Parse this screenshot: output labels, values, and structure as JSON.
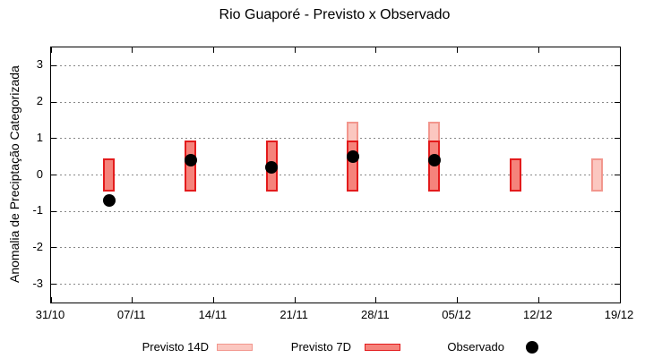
{
  "title": "Rio Guaporé - Previsto x Observado",
  "chart_data": {
    "type": "bar",
    "subtype": "forecast-range-bars-with-observed-scatter",
    "title": "Rio Guaporé - Previsto x Observado",
    "xlabel": "",
    "ylabel": "Anomalia de Preciptação Categorizada",
    "ylim": [
      -3.5,
      3.5
    ],
    "y_ticks": [
      3,
      2,
      1,
      0,
      -1,
      -2,
      -3
    ],
    "x_tick_labels": [
      "31/10",
      "07/11",
      "14/11",
      "21/11",
      "28/11",
      "05/12",
      "12/12",
      "19/12"
    ],
    "x_tick_days": [
      0,
      7,
      14,
      21,
      28,
      35,
      42,
      49
    ],
    "xlim_days": [
      0,
      49
    ],
    "grid": "horizontal-dotted",
    "legend_position": "below-plot",
    "bar_width_days": 1,
    "series": [
      {
        "name": "Previsto 14D",
        "type": "range-bar",
        "fill": "#fbc7c0",
        "border": "#f2968d",
        "points": [
          {
            "date": "26/11",
            "day": 26,
            "low": -0.45,
            "high": 1.45
          },
          {
            "date": "03/12",
            "day": 33,
            "low": -0.45,
            "high": 1.45
          },
          {
            "date": "17/12",
            "day": 47,
            "low": -0.45,
            "high": 0.45
          }
        ]
      },
      {
        "name": "Previsto 7D",
        "type": "range-bar",
        "fill": "#f5837b",
        "border": "#e31b1c",
        "points": [
          {
            "date": "05/11",
            "day": 5,
            "low": -0.45,
            "high": 0.45
          },
          {
            "date": "12/11",
            "day": 12,
            "low": -0.45,
            "high": 0.95
          },
          {
            "date": "19/11",
            "day": 19,
            "low": -0.45,
            "high": 0.95
          },
          {
            "date": "26/11",
            "day": 26,
            "low": -0.45,
            "high": 0.95
          },
          {
            "date": "03/12",
            "day": 33,
            "low": -0.45,
            "high": 0.95
          },
          {
            "date": "10/12",
            "day": 40,
            "low": -0.45,
            "high": 0.45
          }
        ]
      },
      {
        "name": "Observado",
        "type": "scatter",
        "color": "#000000",
        "points": [
          {
            "date": "05/11",
            "day": 5,
            "value": -0.7
          },
          {
            "date": "12/11",
            "day": 12,
            "value": 0.4
          },
          {
            "date": "19/11",
            "day": 19,
            "value": 0.2
          },
          {
            "date": "26/11",
            "day": 26,
            "value": 0.5
          },
          {
            "date": "03/12",
            "day": 33,
            "value": 0.4
          }
        ]
      }
    ]
  },
  "legend": {
    "items": [
      {
        "label": "Previsto 14D"
      },
      {
        "label": "Previsto 7D"
      },
      {
        "label": "Observado"
      }
    ]
  },
  "colors": {
    "background": "#ffffff",
    "axis": "#000000",
    "grid": "#888888",
    "forecast14_fill": "#fbc7c0",
    "forecast14_border": "#f2968d",
    "forecast7_fill": "#f5837b",
    "forecast7_border": "#e31b1c",
    "observed": "#000000"
  }
}
